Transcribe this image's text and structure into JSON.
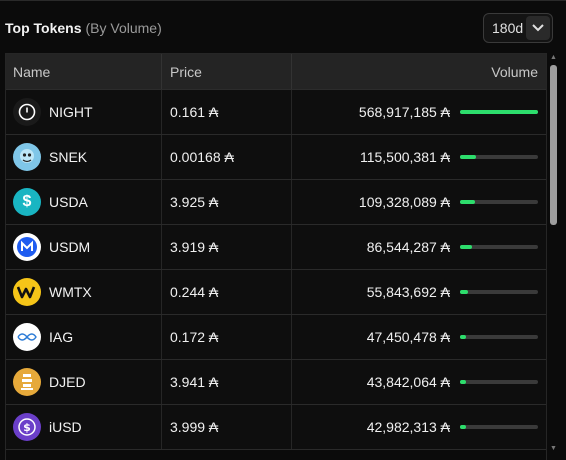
{
  "header": {
    "title": "Top Tokens",
    "subtitle": "(By Volume)",
    "range_value": "180d"
  },
  "columns": {
    "name": "Name",
    "price": "Price",
    "volume": "Volume"
  },
  "currency_symbol": "₳",
  "rows": [
    {
      "symbol": "NIGHT",
      "price": "0.161 ₳",
      "volume": "568,917,185 ₳",
      "share": 1.0,
      "logo": {
        "icon": "night-icon",
        "bg": "#1a1a1a"
      }
    },
    {
      "symbol": "SNEK",
      "price": "0.00168 ₳",
      "volume": "115,500,381 ₳",
      "share": 0.2,
      "logo": {
        "icon": "snek-icon",
        "bg": "#7fc6e8"
      }
    },
    {
      "symbol": "USDA",
      "price": "3.925 ₳",
      "volume": "109,328,089 ₳",
      "share": 0.19,
      "logo": {
        "icon": "usda-icon",
        "bg": "#19b5c2"
      }
    },
    {
      "symbol": "USDM",
      "price": "3.919 ₳",
      "volume": "86,544,287 ₳",
      "share": 0.15,
      "logo": {
        "icon": "usdm-icon",
        "bg": "#ffffff"
      }
    },
    {
      "symbol": "WMTX",
      "price": "0.244 ₳",
      "volume": "55,843,692 ₳",
      "share": 0.1,
      "logo": {
        "icon": "wmtx-icon",
        "bg": "#f5c518"
      }
    },
    {
      "symbol": "IAG",
      "price": "0.172 ₳",
      "volume": "47,450,478 ₳",
      "share": 0.083,
      "logo": {
        "icon": "iag-icon",
        "bg": "#ffffff"
      }
    },
    {
      "symbol": "DJED",
      "price": "3.941 ₳",
      "volume": "43,842,064 ₳",
      "share": 0.077,
      "logo": {
        "icon": "djed-icon",
        "bg": "#e6a93a"
      }
    },
    {
      "symbol": "iUSD",
      "price": "3.999 ₳",
      "volume": "42,982,313 ₳",
      "share": 0.076,
      "logo": {
        "icon": "iusd-icon",
        "bg": "#6b3fc9"
      }
    }
  ],
  "colors": {
    "bar_fill": "#2ddd6c",
    "bar_track": "#3a3a3a"
  }
}
